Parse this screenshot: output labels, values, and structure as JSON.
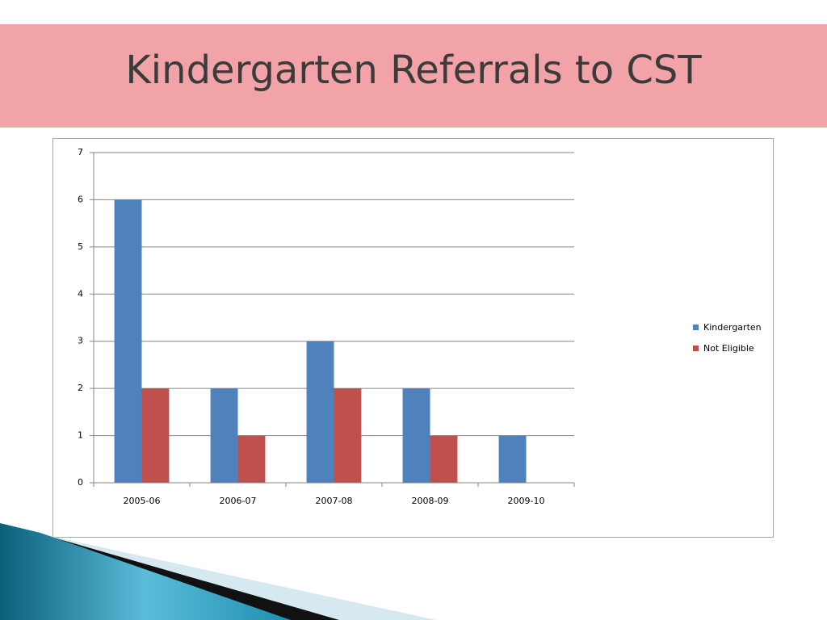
{
  "chart_data": {
    "type": "bar",
    "title": "Kindergarten Referrals to CST",
    "categories": [
      "2005-06",
      "2006-07",
      "2007-08",
      "2008-09",
      "2009-10"
    ],
    "series": [
      {
        "name": "Kindergarten",
        "color": "#4f81bd",
        "values": [
          6,
          2,
          3,
          2,
          1
        ]
      },
      {
        "name": "Not Eligible",
        "color": "#c0504d",
        "values": [
          2,
          1,
          2,
          1,
          0
        ]
      }
    ],
    "ylim": [
      0,
      7
    ],
    "yticks": [
      0,
      1,
      2,
      3,
      4,
      5,
      6,
      7
    ],
    "grid": true,
    "legend": "right"
  }
}
